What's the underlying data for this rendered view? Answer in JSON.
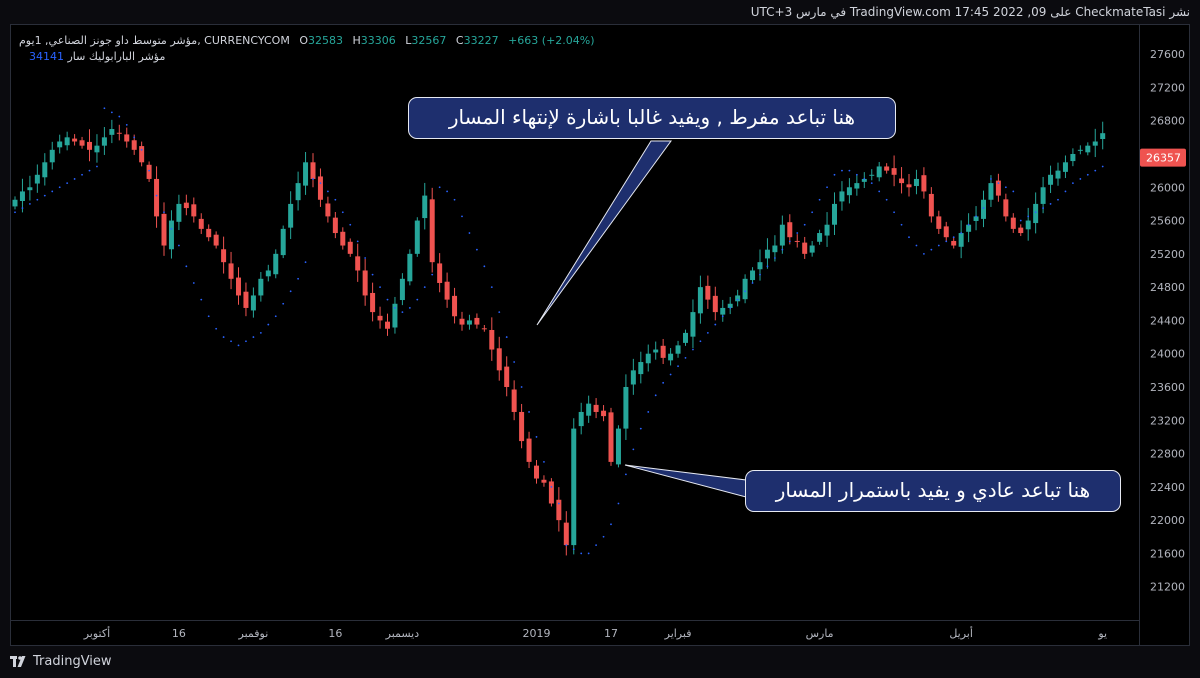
{
  "header": {
    "publish_line": "نشر CheckmateTasi على TradingView.com 17:45 2022 ,09 في مارس UTC+3"
  },
  "legend": {
    "symbol": "مؤشر متوسط داو جونز الصناعي, 1يوم, CURRENCYCOM",
    "open_label": "O",
    "open": "32583",
    "high_label": "H",
    "high": "33306",
    "low_label": "L",
    "low": "32567",
    "close_label": "C",
    "close": "33227",
    "change": "+663 (+2.04%)",
    "psar_label": "مؤشر البارابوليك سار",
    "psar_value": "34141"
  },
  "annotations": {
    "callout_1": "هنا تباعد مفرط , ويفيد غالبا باشارة لإنتهاء المسار",
    "callout_2": "هنا تباعد عادي و يفيد باستمرار المسار"
  },
  "footer": {
    "brand": "TradingView"
  },
  "colors": {
    "up": "#26a69a",
    "down": "#ef5350",
    "psar": "#2962ff",
    "background": "#000000",
    "callout_bg": "#1e2f6e",
    "last_price_bg": "#ef5350"
  },
  "chart_data": {
    "type": "candlestick",
    "title": "",
    "y_ticks": [
      21200,
      21600,
      22000,
      22400,
      22800,
      23200,
      23600,
      24000,
      24400,
      24800,
      25200,
      25600,
      26000,
      26400,
      26800,
      27200,
      27600
    ],
    "ylim": [
      20800,
      27950
    ],
    "last_price": "26357",
    "x_labels": [
      {
        "text": "أكتوبر",
        "i": 11
      },
      {
        "text": "16",
        "i": 22
      },
      {
        "text": "نوفمبر",
        "i": 32
      },
      {
        "text": "16",
        "i": 43
      },
      {
        "text": "ديسمبر",
        "i": 52
      },
      {
        "text": "2019",
        "i": 70
      },
      {
        "text": "17",
        "i": 80
      },
      {
        "text": "فبراير",
        "i": 89
      },
      {
        "text": "مارس",
        "i": 108
      },
      {
        "text": "أبريل",
        "i": 127
      },
      {
        "text": "يو",
        "i": 146
      }
    ],
    "closes": [
      25850,
      25950,
      26000,
      26150,
      26300,
      26450,
      26550,
      26600,
      26550,
      26500,
      26450,
      26500,
      26600,
      26700,
      26650,
      26550,
      26450,
      26300,
      26100,
      25650,
      25300,
      25600,
      25800,
      25750,
      25650,
      25500,
      25400,
      25300,
      25100,
      24900,
      24700,
      24550,
      24700,
      24900,
      25000,
      25200,
      25500,
      25800,
      26050,
      26300,
      26100,
      25850,
      25650,
      25450,
      25300,
      25200,
      25000,
      24700,
      24500,
      24400,
      24300,
      24600,
      24900,
      25200,
      25600,
      25900,
      25100,
      24850,
      24650,
      24450,
      24350,
      24400,
      24350,
      24300,
      24050,
      23800,
      23600,
      23300,
      22950,
      22700,
      22500,
      22450,
      22200,
      22000,
      21700,
      23100,
      23300,
      23400,
      23300,
      23250,
      22700,
      23100,
      23600,
      23800,
      23900,
      24000,
      24050,
      23950,
      24000,
      24100,
      24250,
      24500,
      24800,
      24650,
      24500,
      24550,
      24600,
      24700,
      24900,
      25000,
      25100,
      25250,
      25300,
      25550,
      25400,
      25350,
      25200,
      25300,
      25450,
      25550,
      25800,
      25950,
      26000,
      26050,
      26100,
      26150,
      26250,
      26200,
      26150,
      26050,
      26000,
      26100,
      25950,
      25650,
      25500,
      25400,
      25300,
      25450,
      25550,
      25650,
      25850,
      26050,
      25900,
      25650,
      25500,
      25450,
      25600,
      25800,
      26000,
      26150,
      26200,
      26300,
      26400,
      26450,
      26500,
      26550,
      26650
    ],
    "psar": [
      25700,
      25750,
      25800,
      25850,
      25900,
      25950,
      26000,
      26050,
      26100,
      26150,
      26200,
      26250,
      26950,
      26900,
      26850,
      26750,
      26600,
      26450,
      26200,
      25900,
      25700,
      25500,
      25300,
      25050,
      24850,
      24650,
      24450,
      24300,
      24200,
      24150,
      24100,
      24150,
      24200,
      24250,
      24350,
      24450,
      24600,
      24750,
      24900,
      25100,
      26100,
      26050,
      25950,
      25850,
      25700,
      25550,
      25350,
      25150,
      24950,
      24800,
      24650,
      24550,
      24500,
      24550,
      24650,
      24800,
      24950,
      26000,
      25950,
      25850,
      25650,
      25450,
      25250,
      25050,
      24800,
      24500,
      24200,
      23900,
      23600,
      23300,
      23000,
      22700,
      22400,
      22200,
      21700,
      21650,
      21600,
      21600,
      21700,
      21800,
      21950,
      22200,
      22550,
      22850,
      23100,
      23300,
      23500,
      23650,
      23750,
      23850,
      23950,
      24050,
      24150,
      24250,
      24350,
      24450,
      24550,
      24650,
      24750,
      24850,
      24950,
      25050,
      25150,
      25250,
      25350,
      25450,
      25550,
      25700,
      25850,
      26000,
      26150,
      26200,
      26200,
      26150,
      26100,
      26050,
      25950,
      25850,
      25700,
      25550,
      25400,
      25300,
      25200,
      25250,
      25300,
      25350,
      25400,
      25450,
      25550,
      25650,
      25750,
      26100,
      26050,
      26000,
      25950,
      25600,
      25650,
      25700,
      25750,
      25800,
      25850,
      25950,
      26050,
      26100,
      26150,
      26200,
      26250
    ]
  }
}
